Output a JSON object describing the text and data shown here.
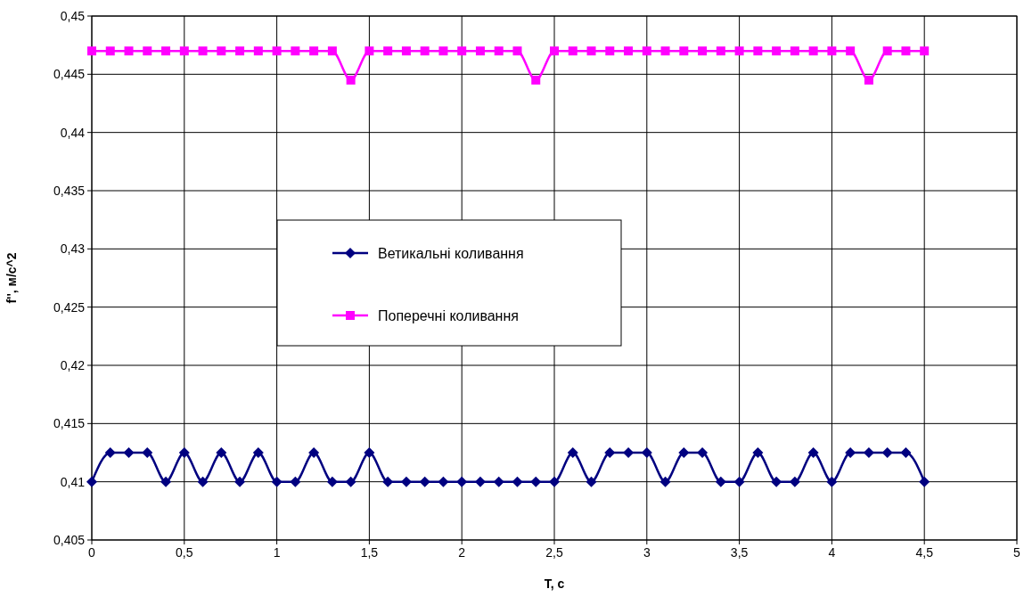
{
  "chart_data": {
    "type": "line",
    "xlabel": "T, c",
    "ylabel": "f'', м/с^2",
    "x": [
      0,
      0.1,
      0.2,
      0.3,
      0.4,
      0.5,
      0.6,
      0.7,
      0.8,
      0.9,
      1,
      1.1,
      1.2,
      1.3,
      1.4,
      1.5,
      1.6,
      1.7,
      1.8,
      1.9,
      2,
      2.1,
      2.2,
      2.3,
      2.4,
      2.5,
      2.6,
      2.7,
      2.8,
      2.9,
      3,
      3.1,
      3.2,
      3.3,
      3.4,
      3.5,
      3.6,
      3.7,
      3.8,
      3.9,
      4,
      4.1,
      4.2,
      4.3,
      4.4,
      4.5
    ],
    "series": [
      {
        "name": "Ветикальні коливання",
        "color": "#000080",
        "marker": "diamond",
        "values": [
          0.41,
          0.4125,
          0.4125,
          0.4125,
          0.41,
          0.4125,
          0.41,
          0.4125,
          0.41,
          0.4125,
          0.41,
          0.41,
          0.4125,
          0.41,
          0.41,
          0.4125,
          0.41,
          0.41,
          0.41,
          0.41,
          0.41,
          0.41,
          0.41,
          0.41,
          0.41,
          0.41,
          0.4125,
          0.41,
          0.4125,
          0.4125,
          0.4125,
          0.41,
          0.4125,
          0.4125,
          0.41,
          0.41,
          0.4125,
          0.41,
          0.41,
          0.4125,
          0.41,
          0.4125,
          0.4125,
          0.4125,
          0.4125,
          0.41
        ]
      },
      {
        "name": "Поперечні коливання",
        "color": "#ff00ff",
        "marker": "square",
        "values": [
          0.447,
          0.447,
          0.447,
          0.447,
          0.447,
          0.447,
          0.447,
          0.447,
          0.447,
          0.447,
          0.447,
          0.447,
          0.447,
          0.447,
          0.4445,
          0.447,
          0.447,
          0.447,
          0.447,
          0.447,
          0.447,
          0.447,
          0.447,
          0.447,
          0.4445,
          0.447,
          0.447,
          0.447,
          0.447,
          0.447,
          0.447,
          0.447,
          0.447,
          0.447,
          0.447,
          0.447,
          0.447,
          0.447,
          0.447,
          0.447,
          0.447,
          0.447,
          0.4445,
          0.447,
          0.447,
          0.447
        ]
      }
    ],
    "xlim": [
      0,
      5
    ],
    "xticks": [
      0,
      {
        "value": 0.5,
        "label": "0,5"
      },
      1,
      {
        "value": 1.5,
        "label": "1,5"
      },
      2,
      {
        "value": 2.5,
        "label": "2,5"
      },
      3,
      {
        "value": 3.5,
        "label": "3,5"
      },
      4,
      {
        "value": 4.5,
        "label": "4,5"
      },
      5
    ],
    "ylim": [
      0.405,
      0.45
    ],
    "yticks": [
      {
        "value": 0.405,
        "label": "0,405"
      },
      {
        "value": 0.41,
        "label": "0,41"
      },
      {
        "value": 0.415,
        "label": "0,415"
      },
      {
        "value": 0.42,
        "label": "0,42"
      },
      {
        "value": 0.425,
        "label": "0,425"
      },
      {
        "value": 0.43,
        "label": "0,43"
      },
      {
        "value": 0.435,
        "label": "0,435"
      },
      {
        "value": 0.44,
        "label": "0,44"
      },
      {
        "value": 0.445,
        "label": "0,445"
      },
      {
        "value": 0.45,
        "label": "0,45"
      }
    ],
    "grid": true,
    "legend": "center",
    "line_style": "solid"
  }
}
